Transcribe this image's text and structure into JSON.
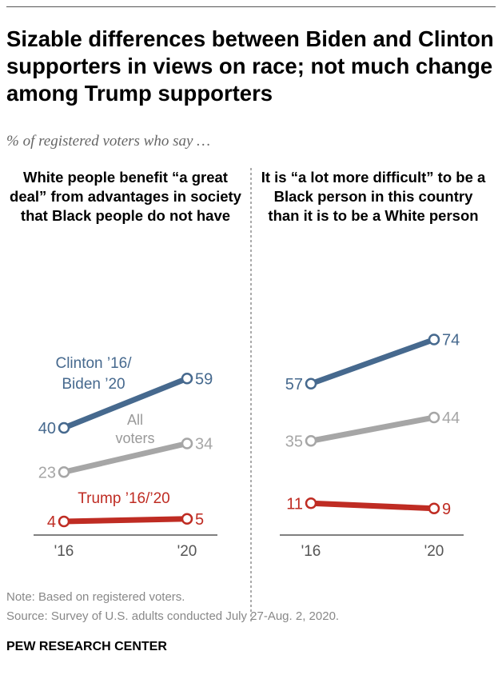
{
  "title": "Sizable differences between Biden and Clinton supporters in views on race; not much change among Trump supporters",
  "subtitle": "% of registered voters who say …",
  "colors": {
    "clinton_biden": "#46698E",
    "all_voters": "#A6A6A6",
    "trump": "#BF2C23"
  },
  "chart_data": [
    {
      "type": "line",
      "title": "White people benefit “a great deal” from advantages in society that Black people do not have",
      "categories": [
        "'16",
        "'20"
      ],
      "series": [
        {
          "name": "Clinton ’16/ Biden ’20",
          "values": [
            40,
            59
          ]
        },
        {
          "name": "All voters",
          "values": [
            23,
            34
          ]
        },
        {
          "name": "Trump ’16/’20",
          "values": [
            4,
            5
          ]
        }
      ]
    },
    {
      "type": "line",
      "title": "It is “a lot more difficult” to be a Black person in this country than it is to be a White person",
      "categories": [
        "'16",
        "'20"
      ],
      "series": [
        {
          "values": [
            57,
            74
          ]
        },
        {
          "values": [
            35,
            44
          ]
        },
        {
          "values": [
            11,
            9
          ]
        }
      ]
    }
  ],
  "labels": {
    "clinton1": "Clinton ’16/",
    "clinton2": "Biden ’20",
    "all1": "All",
    "all2": "voters",
    "trump": "Trump ’16/’20"
  },
  "note": "Note: Based on registered voters.",
  "source": "Source: Survey of U.S. adults conducted July 27-Aug. 2, 2020.",
  "brand": "PEW RESEARCH CENTER"
}
